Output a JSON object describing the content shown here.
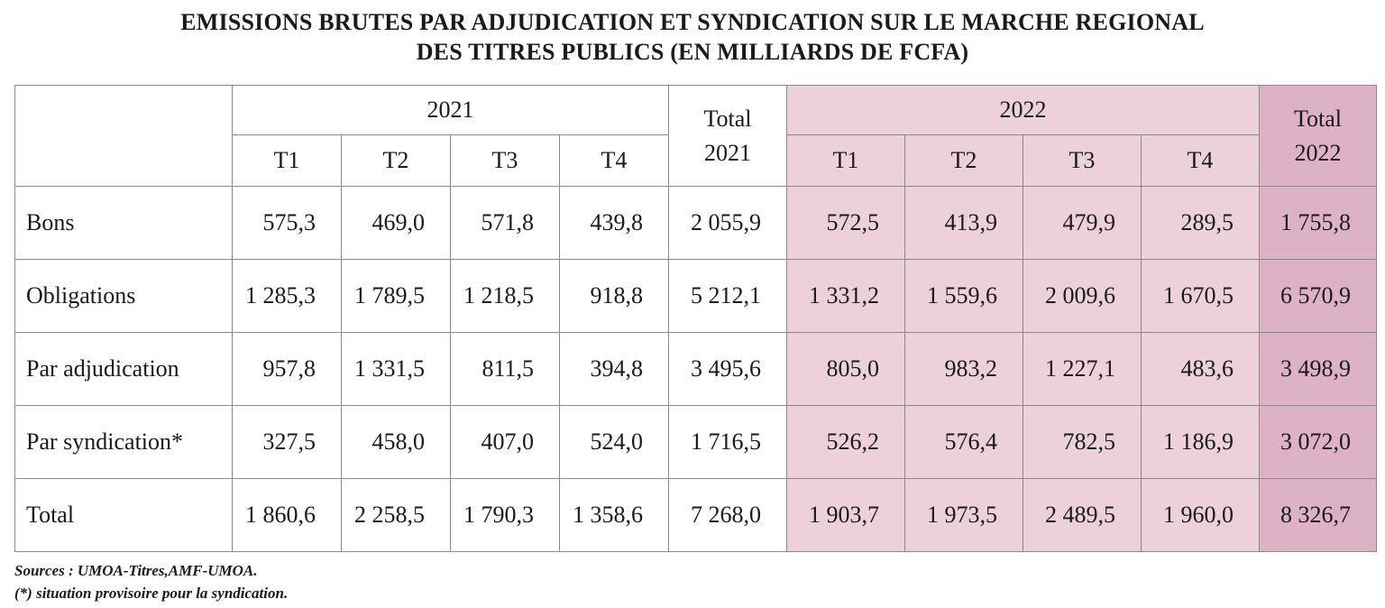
{
  "title": {
    "line1": "EMISSIONS BRUTES PAR ADJUDICATION ET SYNDICATION SUR LE MARCHE REGIONAL",
    "line2": "DES TITRES PUBLICS (EN MILLIARDS DE FCFA)"
  },
  "header": {
    "year1": "2021",
    "total1_line1": "Total",
    "total1_line2": "2021",
    "year2": "2022",
    "total2_line1": "Total",
    "total2_line2": "2022",
    "quarters": [
      "T1",
      "T2",
      "T3",
      "T4"
    ]
  },
  "rows": [
    {
      "label": "Bons",
      "values": [
        "575,3",
        "469,0",
        "571,8",
        "439,8",
        "2 055,9",
        "572,5",
        "413,9",
        "479,9",
        "289,5",
        "1 755,8"
      ]
    },
    {
      "label": "Obligations",
      "values": [
        "1 285,3",
        "1 789,5",
        "1 218,5",
        "918,8",
        "5 212,1",
        "1 331,2",
        "1 559,6",
        "2 009,6",
        "1 670,5",
        "6 570,9"
      ]
    },
    {
      "label": "Par adjudication",
      "values": [
        "957,8",
        "1 331,5",
        "811,5",
        "394,8",
        "3 495,6",
        "805,0",
        "983,2",
        "1 227,1",
        "483,6",
        "3 498,9"
      ]
    },
    {
      "label": "Par syndication*",
      "values": [
        "327,5",
        "458,0",
        "407,0",
        "524,0",
        "1 716,5",
        "526,2",
        "576,4",
        "782,5",
        "1 186,9",
        "3 072,0"
      ]
    },
    {
      "label": "Total",
      "values": [
        "1 860,6",
        "2 258,5",
        "1 790,3",
        "1 358,6",
        "7 268,0",
        "1 903,7",
        "1 973,5",
        "2 489,5",
        "1 960,0",
        "8 326,7"
      ]
    }
  ],
  "notes": {
    "sources": "Sources : UMOA-Titres,AMF-UMOA.",
    "footnote": "(*) situation provisoire pour la syndication."
  },
  "colors": {
    "highlight_2022": "#ecd0da",
    "highlight_total_2022": "#ddb2c5",
    "border": "#8a8a8a"
  }
}
